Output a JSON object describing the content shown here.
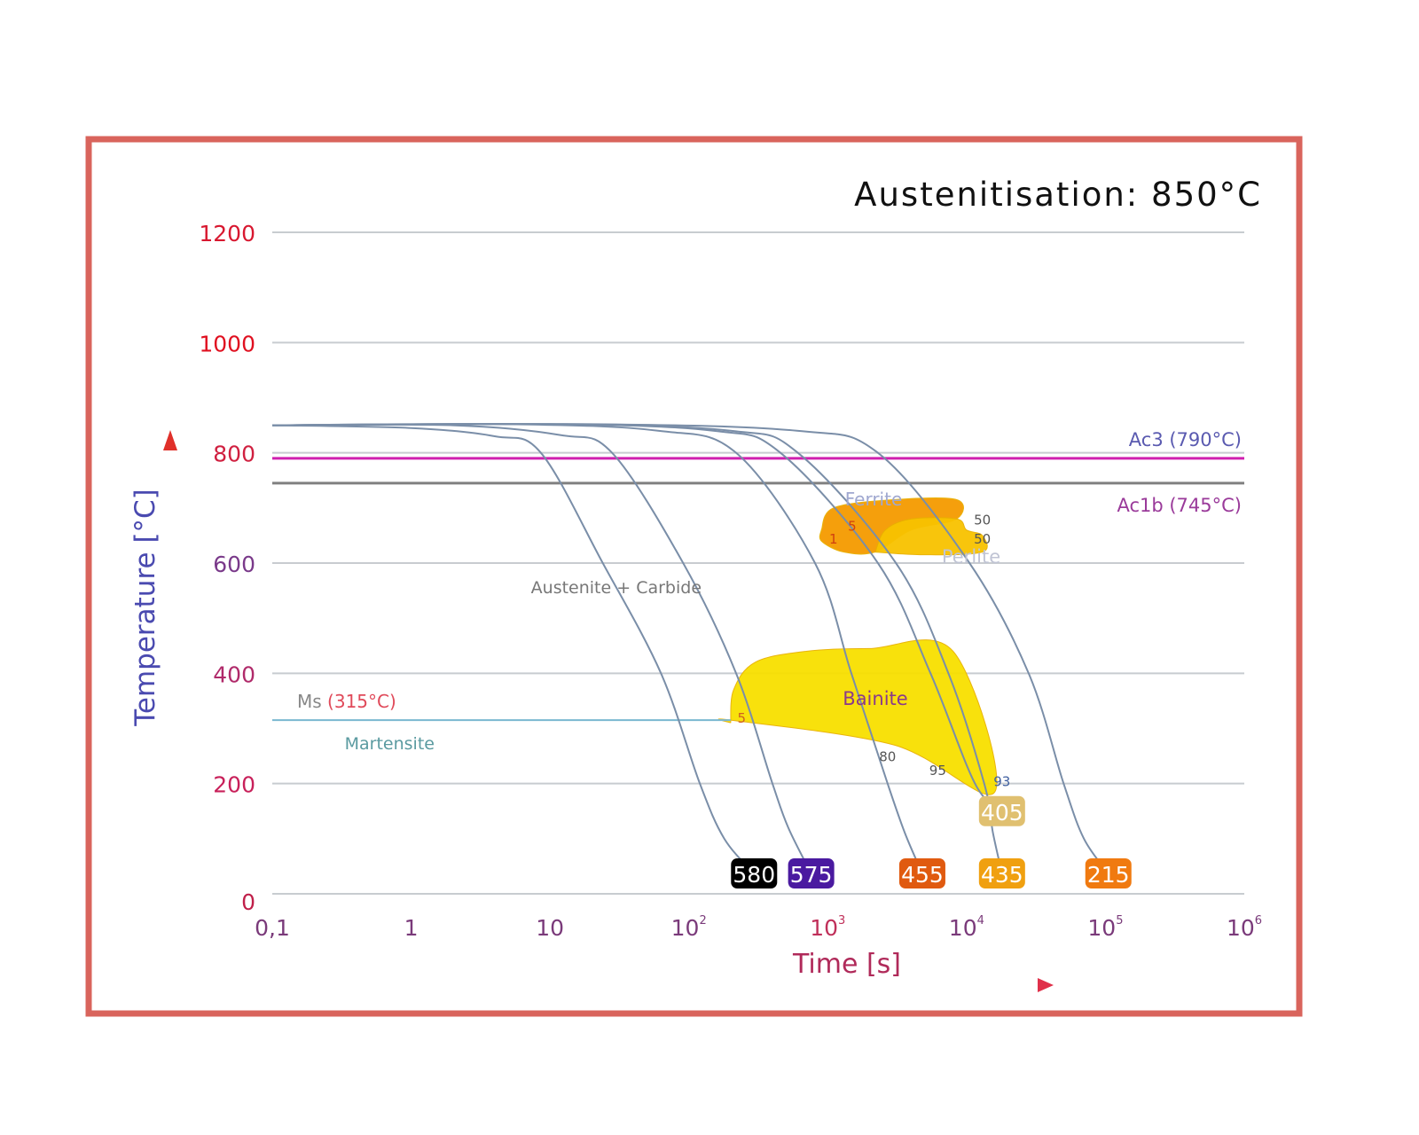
{
  "chart_data": {
    "type": "line",
    "title": "Austenitisation: 850°C",
    "xlabel": "Time [s]",
    "ylabel": "Temperature [°C]",
    "x_scale": "log",
    "xlim": [
      0.1,
      1000000
    ],
    "ylim": [
      0,
      1200
    ],
    "grid": "horizontal",
    "x_ticks": [
      {
        "value": 0.1,
        "base": "0,1",
        "exp": ""
      },
      {
        "value": 1,
        "base": "1",
        "exp": ""
      },
      {
        "value": 10,
        "base": "10",
        "exp": ""
      },
      {
        "value": 100,
        "base": "10",
        "exp": "2"
      },
      {
        "value": 1000,
        "base": "10",
        "exp": "3"
      },
      {
        "value": 10000,
        "base": "10",
        "exp": "4"
      },
      {
        "value": 100000,
        "base": "10",
        "exp": "5"
      },
      {
        "value": 1000000,
        "base": "10",
        "exp": "6"
      }
    ],
    "y_ticks": [
      {
        "value": 0,
        "label": "0",
        "color": "#c0204a"
      },
      {
        "value": 200,
        "label": "200",
        "color": "#c8205a"
      },
      {
        "value": 400,
        "label": "400",
        "color": "#b02a6a"
      },
      {
        "value": 600,
        "label": "600",
        "color": "#7a3a8a"
      },
      {
        "value": 800,
        "label": "800",
        "color": "#d02040"
      },
      {
        "value": 1000,
        "label": "1000",
        "color": "#e01020"
      },
      {
        "value": 1200,
        "label": "1200",
        "color": "#d81830"
      }
    ],
    "reference_lines": [
      {
        "name": "Ac3",
        "label": "Ac3 (790°C)",
        "value": 790,
        "color": "#d020b0"
      },
      {
        "name": "Ac1b",
        "label": "Ac1b (745°C)",
        "value": 745,
        "color": "#808080"
      }
    ],
    "ms_line": {
      "label_prefix": "Ms ",
      "label_value": "(315°C)",
      "value": 315,
      "t_end": 200,
      "color": "#7ab8d0"
    },
    "regions": [
      {
        "name": "Ferrite",
        "label": "Ferrite",
        "color": "#f59a00",
        "points": [
          [
            900,
            660
          ],
          [
            1100,
            700
          ],
          [
            3000,
            715
          ],
          [
            8500,
            715
          ],
          [
            8500,
            680
          ],
          [
            4000,
            660
          ],
          [
            2200,
            620
          ],
          [
            1300,
            620
          ],
          [
            900,
            640
          ]
        ]
      },
      {
        "name": "Perlite",
        "label": "Perlite",
        "color": "#f8c200",
        "points": [
          [
            2200,
            620
          ],
          [
            2600,
            660
          ],
          [
            4000,
            680
          ],
          [
            8500,
            680
          ],
          [
            10000,
            660
          ],
          [
            13000,
            650
          ],
          [
            13000,
            620
          ],
          [
            5000,
            615
          ]
        ]
      },
      {
        "name": "Bainite",
        "label": "Bainite",
        "color": "#f8e000",
        "points": [
          [
            200,
            310
          ],
          [
            210,
            370
          ],
          [
            300,
            420
          ],
          [
            700,
            440
          ],
          [
            2000,
            445
          ],
          [
            8000,
            440
          ],
          [
            16000,
            185
          ],
          [
            3000,
            270
          ],
          [
            200,
            315
          ]
        ]
      }
    ],
    "region_labels": [
      {
        "text": "1",
        "t": 1100,
        "temp": 645,
        "color": "#d04010"
      },
      {
        "text": "5",
        "t": 1500,
        "temp": 668,
        "color": "#d04010"
      },
      {
        "text": "50",
        "t": 13000,
        "temp": 680,
        "color": "#555"
      },
      {
        "text": "50",
        "t": 13000,
        "temp": 645,
        "color": "#555"
      },
      {
        "text": "5",
        "t": 240,
        "temp": 320,
        "color": "#d06020"
      },
      {
        "text": "80",
        "t": 2700,
        "temp": 250,
        "color": "#555"
      },
      {
        "text": "95",
        "t": 6200,
        "temp": 225,
        "color": "#555"
      },
      {
        "text": "93",
        "t": 18000,
        "temp": 205,
        "color": "#4060a0"
      }
    ],
    "annotations": [
      {
        "text": "Austenite + Carbide",
        "t": 30,
        "temp": 545,
        "color": "#777"
      },
      {
        "text": "Martensite",
        "t": 0.7,
        "temp": 262,
        "color": "#5a9aa0"
      }
    ],
    "series": [
      {
        "hardness": "580",
        "box_color": "#000000",
        "points": [
          [
            0.1,
            850
          ],
          [
            1,
            845
          ],
          [
            4,
            830
          ],
          [
            8.6,
            800
          ],
          [
            24,
            600
          ],
          [
            63,
            400
          ],
          [
            120,
            200
          ],
          [
            180,
            100
          ],
          [
            295,
            37
          ]
        ]
      },
      {
        "hardness": "575",
        "box_color": "#4a1aa0",
        "points": [
          [
            0.1,
            850
          ],
          [
            2,
            850
          ],
          [
            12,
            832
          ],
          [
            28,
            800
          ],
          [
            91,
            600
          ],
          [
            219,
            400
          ],
          [
            400,
            200
          ],
          [
            520,
            120
          ],
          [
            760,
            37
          ]
        ]
      },
      {
        "hardness": "455",
        "box_color": "#e05a10",
        "points": [
          [
            0.1,
            850
          ],
          [
            5,
            852
          ],
          [
            60,
            840
          ],
          [
            219,
            800
          ],
          [
            810,
            600
          ],
          [
            1480,
            400
          ],
          [
            2700,
            200
          ],
          [
            3600,
            110
          ],
          [
            4800,
            37
          ]
        ]
      },
      {
        "hardness": "405",
        "box_color": "#e0c070",
        "points": [
          [
            0.1,
            850
          ],
          [
            10,
            852
          ],
          [
            150,
            840
          ],
          [
            457,
            800
          ],
          [
            2300,
            600
          ],
          [
            5500,
            400
          ],
          [
            11500,
            200
          ],
          [
            18000,
            150
          ]
        ]
      },
      {
        "hardness": "435",
        "box_color": "#f0a010",
        "points": [
          [
            0.1,
            850
          ],
          [
            10,
            852
          ],
          [
            200,
            840
          ],
          [
            610,
            800
          ],
          [
            3100,
            600
          ],
          [
            7400,
            400
          ],
          [
            13400,
            200
          ],
          [
            15500,
            110
          ],
          [
            18000,
            37
          ]
        ]
      },
      {
        "hardness": "215",
        "box_color": "#f07a10",
        "points": [
          [
            0.1,
            850
          ],
          [
            20,
            852
          ],
          [
            600,
            840
          ],
          [
            2300,
            800
          ],
          [
            10500,
            600
          ],
          [
            28000,
            400
          ],
          [
            50000,
            200
          ],
          [
            70000,
            100
          ],
          [
            105000,
            37
          ]
        ]
      }
    ]
  }
}
